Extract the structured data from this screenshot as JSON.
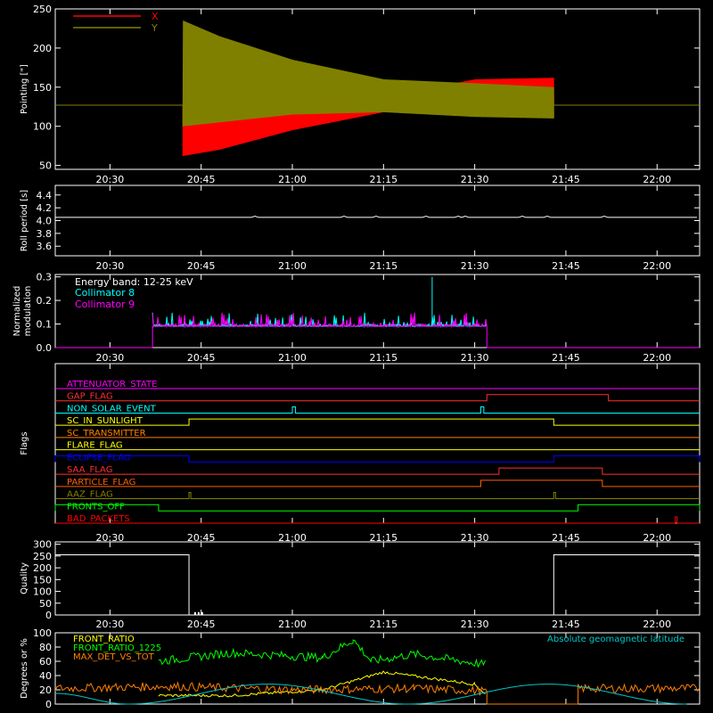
{
  "time_axis": {
    "start": "20:21",
    "end": "22:07",
    "ticks": [
      "20:30",
      "20:45",
      "21:00",
      "21:15",
      "21:30",
      "21:45",
      "22:00"
    ]
  },
  "colors": {
    "background": "#000000",
    "axes": "#ffffff",
    "x_pointing": "#ff0000",
    "y_pointing": "#808000",
    "collimator8": "#00ffff",
    "collimator9": "#ff00ff",
    "front_ratio": "#ffff00",
    "front_ratio_1225": "#00ff00",
    "max_det_vs_tot": "#ff8000",
    "geomag_latitude": "#00c8c8"
  },
  "chart_data": [
    {
      "id": "pointing",
      "type": "line",
      "ylabel": "Pointing [\"]",
      "ylim": [
        45,
        250
      ],
      "yticks": [
        "50",
        "100",
        "150",
        "200",
        "250"
      ],
      "legend": [
        "X",
        "Y"
      ],
      "series": [
        {
          "name": "X",
          "x": [
            "20:21",
            "20:42",
            "20:42",
            "20:48",
            "21:00",
            "21:15",
            "21:30",
            "21:43",
            "21:43",
            "22:07"
          ],
          "low": [
            127,
            127,
            62,
            70,
            95,
            118,
            135,
            140,
            127,
            127
          ],
          "high": [
            127,
            127,
            127,
            130,
            132,
            138,
            160,
            162,
            127,
            127
          ]
        },
        {
          "name": "Y",
          "x": [
            "20:21",
            "20:42",
            "20:42",
            "20:48",
            "21:00",
            "21:15",
            "21:30",
            "21:43",
            "21:43",
            "22:07"
          ],
          "low": [
            127,
            127,
            100,
            105,
            115,
            118,
            112,
            110,
            127,
            127
          ],
          "high": [
            127,
            127,
            235,
            215,
            185,
            160,
            155,
            150,
            127,
            127
          ]
        }
      ]
    },
    {
      "id": "roll",
      "type": "line",
      "ylabel": "Roll period [s]",
      "ylim": [
        3.45,
        4.55
      ],
      "yticks": [
        "3.6",
        "3.8",
        "4.0",
        "4.2",
        "4.4"
      ],
      "series": [
        {
          "name": "",
          "x": [
            "20:21",
            "22:07"
          ],
          "values": [
            4.05,
            4.05
          ]
        }
      ]
    },
    {
      "id": "modulation",
      "type": "line",
      "ylabel": "Normalized modulation",
      "ylim": [
        0,
        0.31
      ],
      "yticks": [
        "0.0",
        "0.1",
        "0.2",
        "0.3"
      ],
      "annotation": "Energy band: 12-25 keV",
      "series": [
        {
          "name": "Collimator 8",
          "x": [
            "20:21",
            "20:37",
            "20:37",
            "21:32",
            "21:32",
            "22:07"
          ],
          "values": [
            0,
            0,
            0.09,
            0.09,
            0,
            0
          ],
          "peak": 0.3,
          "peak_at": "21:23"
        },
        {
          "name": "Collimator 9",
          "x": [
            "20:21",
            "20:37",
            "20:37",
            "21:32",
            "21:32",
            "22:07"
          ],
          "values": [
            0,
            0,
            0.09,
            0.09,
            0,
            0
          ]
        }
      ]
    },
    {
      "id": "flags",
      "type": "line",
      "ylabel": "Flags",
      "flags": [
        {
          "name": "ATTENUATOR_STATE",
          "color": "#ff00ff",
          "on": []
        },
        {
          "name": "GAP_FLAG",
          "color": "#ff3030",
          "on": [
            [
              "21:32",
              "21:52"
            ]
          ]
        },
        {
          "name": "NON_SOLAR_EVENT",
          "color": "#00ffff",
          "on": [
            [
              "21:00",
              "21:00.5"
            ],
            [
              "21:31",
              "21:31.5"
            ]
          ]
        },
        {
          "name": "SC_IN_SUNLIGHT",
          "color": "#ffff00",
          "on": [
            [
              "20:43",
              "21:43"
            ]
          ]
        },
        {
          "name": "SC_TRANSMITTER",
          "color": "#ff8000",
          "on": []
        },
        {
          "name": "FLARE_FLAG",
          "color": "#ffff00",
          "on": []
        },
        {
          "name": "ECLIPSE_FLAG",
          "color": "#0000ff",
          "on": [
            [
              "20:21",
              "20:43"
            ],
            [
              "21:43",
              "22:07"
            ]
          ]
        },
        {
          "name": "SAA_FLAG",
          "color": "#ff3030",
          "on": [
            [
              "21:34",
              "21:51"
            ]
          ]
        },
        {
          "name": "PARTICLE_FLAG",
          "color": "#ff6000",
          "on": [
            [
              "21:31",
              "21:51"
            ]
          ]
        },
        {
          "name": "AAZ_FLAG",
          "color": "#808000",
          "on": [
            [
              "20:43",
              "20:43.3"
            ],
            [
              "21:43",
              "21:43.3"
            ]
          ]
        },
        {
          "name": "FRONTS_OFF",
          "color": "#00ff00",
          "on": [
            [
              "20:21",
              "20:38"
            ],
            [
              "21:47",
              "22:07"
            ]
          ]
        },
        {
          "name": "BAD_PACKETS",
          "color": "#ff0000",
          "on": [
            [
              "22:03",
              "22:03.3"
            ]
          ]
        }
      ]
    },
    {
      "id": "quality",
      "type": "line",
      "ylabel": "Quality",
      "ylim": [
        0,
        310
      ],
      "yticks": [
        "0",
        "50",
        "100",
        "150",
        "200",
        "250",
        "300"
      ],
      "series": [
        {
          "name": "",
          "x": [
            "20:21",
            "20:43",
            "20:43",
            "21:43",
            "21:43",
            "22:07"
          ],
          "values": [
            255,
            255,
            0,
            0,
            255,
            255
          ]
        }
      ]
    },
    {
      "id": "ratios",
      "type": "line",
      "ylabel": "Degrees or %",
      "ylim": [
        0,
        100
      ],
      "yticks": [
        "0",
        "20",
        "40",
        "60",
        "80",
        "100"
      ],
      "right_label": "Absolute geomagnetic latitude",
      "series": [
        {
          "name": "FRONT_RATIO",
          "x": [
            "20:38",
            "20:50",
            "21:05",
            "21:15",
            "21:30",
            "21:32"
          ],
          "values": [
            12,
            12,
            20,
            45,
            28,
            12
          ]
        },
        {
          "name": "FRONT_RATIO_1225",
          "x": [
            "20:38",
            "20:50",
            "21:05",
            "21:10",
            "21:13",
            "21:20",
            "21:32"
          ],
          "values": [
            60,
            72,
            65,
            90,
            60,
            70,
            55
          ]
        },
        {
          "name": "MAX_DET_VS_TOT",
          "x": [
            "20:21",
            "20:40",
            "21:00",
            "21:20",
            "21:32",
            "21:32",
            "21:47",
            "21:47",
            "22:07"
          ],
          "values": [
            22,
            25,
            20,
            22,
            18,
            0,
            0,
            22,
            22
          ]
        },
        {
          "name": "Absolute geomagnetic latitude",
          "x": [
            "20:21",
            "20:33",
            "20:56",
            "21:19",
            "21:42",
            "22:05"
          ],
          "values": [
            15,
            0,
            28,
            0,
            28,
            0
          ]
        }
      ]
    }
  ]
}
